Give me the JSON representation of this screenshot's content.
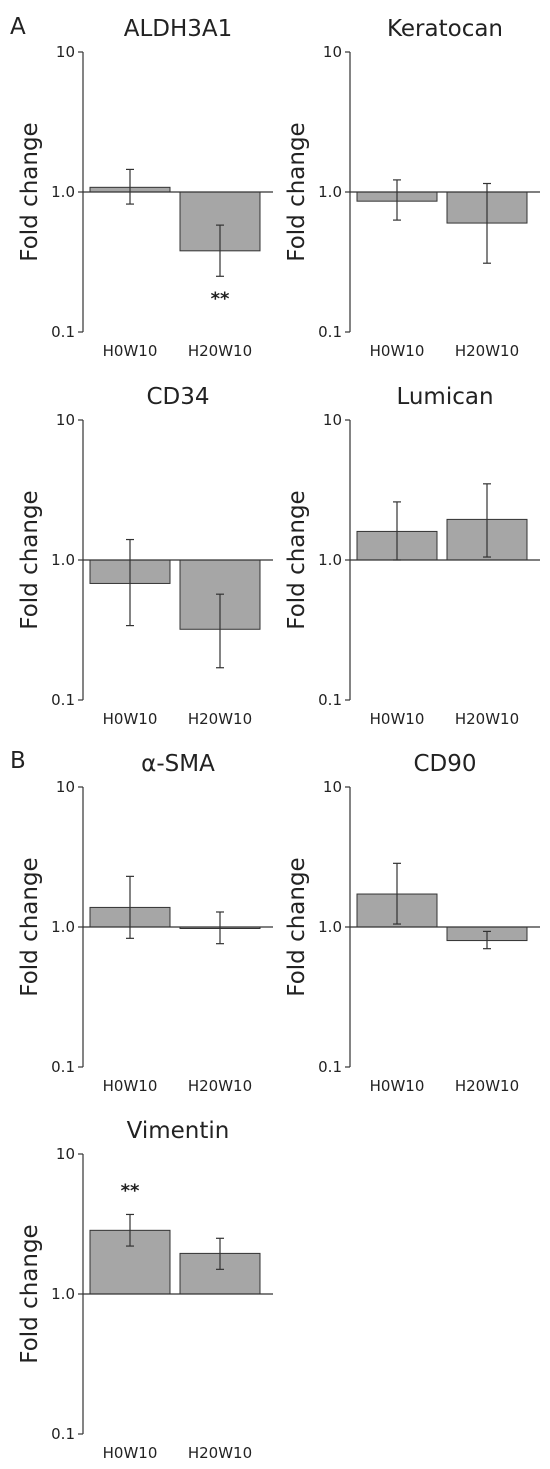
{
  "sections": [
    {
      "label": "A"
    },
    {
      "label": "B"
    }
  ],
  "y_tick_labels": [
    "0.1",
    "1.0",
    "10"
  ],
  "chart_data": [
    {
      "type": "bar",
      "title": "ALDH3A1",
      "ylabel": "Fold change",
      "xlabel": "",
      "yscale": "log",
      "ylim": [
        0.1,
        10
      ],
      "baseline": 1.0,
      "categories": [
        "H0W10",
        "H20W10"
      ],
      "values": [
        1.08,
        0.38
      ],
      "error_low": [
        0.82,
        0.25
      ],
      "error_high": [
        1.45,
        0.58
      ],
      "annotations": [
        {
          "category": "H20W10",
          "text": "**",
          "position": "below"
        }
      ]
    },
    {
      "type": "bar",
      "title": "Keratocan",
      "ylabel": "Fold change",
      "xlabel": "",
      "yscale": "log",
      "ylim": [
        0.1,
        10
      ],
      "baseline": 1.0,
      "categories": [
        "H0W10",
        "H20W10"
      ],
      "values": [
        0.86,
        0.6
      ],
      "error_low": [
        0.63,
        0.31
      ],
      "error_high": [
        1.22,
        1.15
      ],
      "annotations": []
    },
    {
      "type": "bar",
      "title": "CD34",
      "ylabel": "Fold change",
      "xlabel": "",
      "yscale": "log",
      "ylim": [
        0.1,
        10
      ],
      "baseline": 1.0,
      "categories": [
        "H0W10",
        "H20W10"
      ],
      "values": [
        0.68,
        0.32
      ],
      "error_low": [
        0.34,
        0.17
      ],
      "error_high": [
        1.4,
        0.57
      ],
      "annotations": []
    },
    {
      "type": "bar",
      "title": "Lumican",
      "ylabel": "Fold change",
      "xlabel": "",
      "yscale": "log",
      "ylim": [
        0.1,
        10
      ],
      "baseline": 1.0,
      "categories": [
        "H0W10",
        "H20W10"
      ],
      "values": [
        1.6,
        1.95
      ],
      "error_low": [
        1.0,
        1.05
      ],
      "error_high": [
        2.6,
        3.5
      ],
      "annotations": []
    },
    {
      "type": "bar",
      "title": "α-SMA",
      "ylabel": "Fold change",
      "xlabel": "",
      "yscale": "log",
      "ylim": [
        0.1,
        10
      ],
      "baseline": 1.0,
      "categories": [
        "H0W10",
        "H20W10"
      ],
      "values": [
        1.38,
        0.98
      ],
      "error_low": [
        0.83,
        0.76
      ],
      "error_high": [
        2.3,
        1.28
      ],
      "annotations": []
    },
    {
      "type": "bar",
      "title": "CD90",
      "ylabel": "Fold change",
      "xlabel": "",
      "yscale": "log",
      "ylim": [
        0.1,
        10
      ],
      "baseline": 1.0,
      "categories": [
        "H0W10",
        "H20W10"
      ],
      "values": [
        1.72,
        0.8
      ],
      "error_low": [
        1.05,
        0.7
      ],
      "error_high": [
        2.85,
        0.93
      ],
      "annotations": []
    },
    {
      "type": "bar",
      "title": "Vimentin",
      "ylabel": "Fold change",
      "xlabel": "",
      "yscale": "log",
      "ylim": [
        0.1,
        10
      ],
      "baseline": 1.0,
      "categories": [
        "H0W10",
        "H20W10"
      ],
      "values": [
        2.85,
        1.95
      ],
      "error_low": [
        2.2,
        1.5
      ],
      "error_high": [
        3.7,
        2.5
      ],
      "annotations": [
        {
          "category": "H0W10",
          "text": "**",
          "position": "above"
        }
      ]
    }
  ],
  "colors": {
    "bar_fill": "#a6a6a6",
    "bar_stroke": "#333333",
    "axis": "#333333",
    "text": "#222222"
  }
}
